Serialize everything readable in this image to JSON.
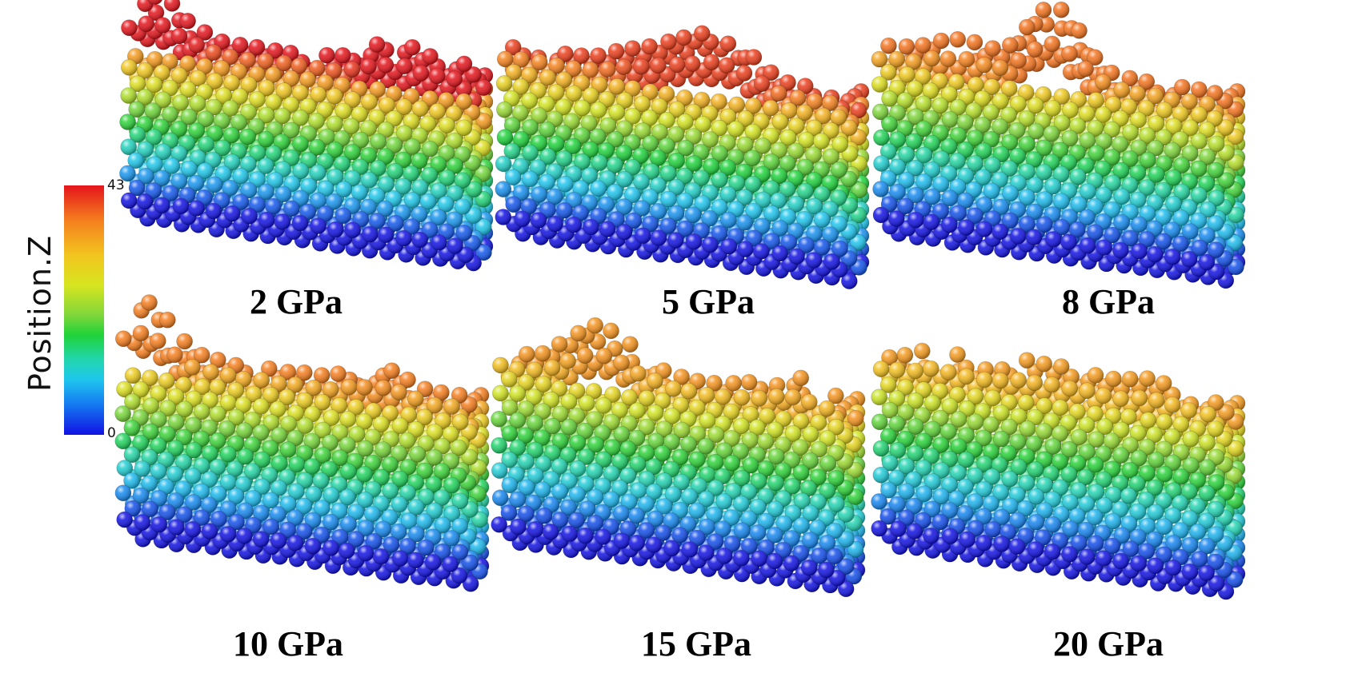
{
  "colorbar": {
    "title": "Position.Z",
    "max_label": "43",
    "min_label": "0"
  },
  "panels": [
    {
      "label": "2 GPa",
      "roughness": 1.0
    },
    {
      "label": "5 GPa",
      "roughness": 0.8
    },
    {
      "label": "8 GPa",
      "roughness": 0.55
    },
    {
      "label": "10 GPa",
      "roughness": 0.5
    },
    {
      "label": "15 GPa",
      "roughness": 0.35
    },
    {
      "label": "20 GPa",
      "roughness": 0.3
    }
  ],
  "colors": {
    "scale": [
      "#1111e4",
      "#1478f0",
      "#1ec6ee",
      "#23d6b0",
      "#1fd339",
      "#7fd63a",
      "#d7e51f",
      "#f2c51f",
      "#f57f1e",
      "#e4141b"
    ]
  }
}
